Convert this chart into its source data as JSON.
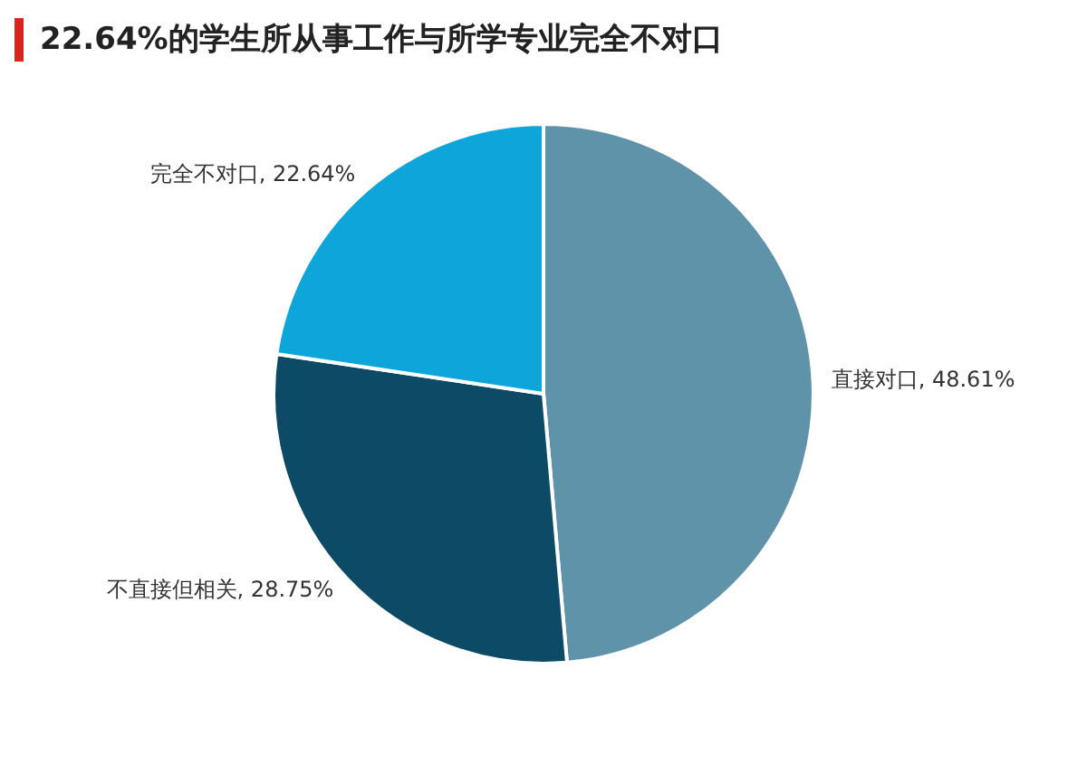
{
  "chart_data": {
    "type": "pie",
    "title": "22.64%的学生所从事工作与所学专业完全不对口",
    "categories": [
      "直接对口",
      "不直接但相关",
      "完全不对口"
    ],
    "values": [
      48.61,
      28.75,
      22.64
    ],
    "value_labels": [
      "48.61%",
      "28.75%",
      "22.64%"
    ],
    "colors": [
      "#5f93aa",
      "#0d4a66",
      "#0ea5db"
    ],
    "legend": false
  }
}
